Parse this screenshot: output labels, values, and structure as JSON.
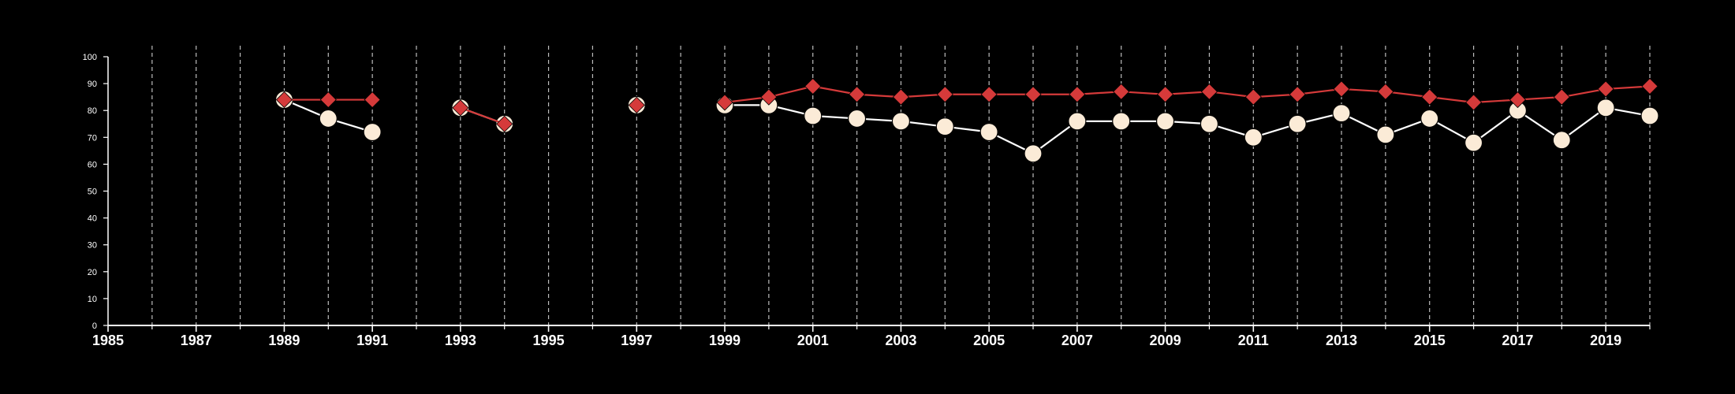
{
  "chart_data": {
    "type": "line",
    "title": "",
    "xlabel": "",
    "ylabel": "",
    "xlim": [
      1985,
      2020
    ],
    "ylim": [
      0,
      100
    ],
    "x_ticks": [
      1985,
      1987,
      1989,
      1991,
      1993,
      1995,
      1997,
      1999,
      2001,
      2003,
      2005,
      2007,
      2009,
      2011,
      2013,
      2015,
      2017,
      2019
    ],
    "y_ticks": [
      0,
      10,
      20,
      30,
      40,
      50,
      60,
      70,
      80,
      90,
      100
    ],
    "grid": "vertical dashed lines every year",
    "legend": "none",
    "background_color": "#000000",
    "series": [
      {
        "marker": "circle",
        "color": "#fbebd7",
        "line_color": "#ffffff",
        "x": [
          1989,
          1990,
          1991,
          1993,
          1994,
          1997,
          1999,
          2000,
          2001,
          2002,
          2003,
          2004,
          2005,
          2006,
          2007,
          2008,
          2009,
          2010,
          2011,
          2012,
          2013,
          2014,
          2015,
          2016,
          2017,
          2018,
          2019,
          2020
        ],
        "y": [
          84,
          77,
          72,
          81,
          75,
          82,
          82,
          82,
          78,
          77,
          76,
          74,
          72,
          64,
          76,
          76,
          76,
          75,
          70,
          75,
          79,
          71,
          77,
          68,
          80,
          69,
          81,
          78
        ]
      },
      {
        "marker": "diamond",
        "color": "#d53a3a",
        "line_color": "#d53a3a",
        "x": [
          1989,
          1990,
          1991,
          1993,
          1994,
          1997,
          1999,
          2000,
          2001,
          2002,
          2003,
          2004,
          2005,
          2006,
          2007,
          2008,
          2009,
          2010,
          2011,
          2012,
          2013,
          2014,
          2015,
          2016,
          2017,
          2018,
          2019,
          2020
        ],
        "y": [
          84,
          84,
          84,
          81,
          75,
          82,
          83,
          85,
          89,
          86,
          85,
          86,
          86,
          86,
          86,
          87,
          86,
          87,
          85,
          86,
          88,
          87,
          85,
          83,
          84,
          85,
          88,
          89
        ]
      }
    ]
  }
}
